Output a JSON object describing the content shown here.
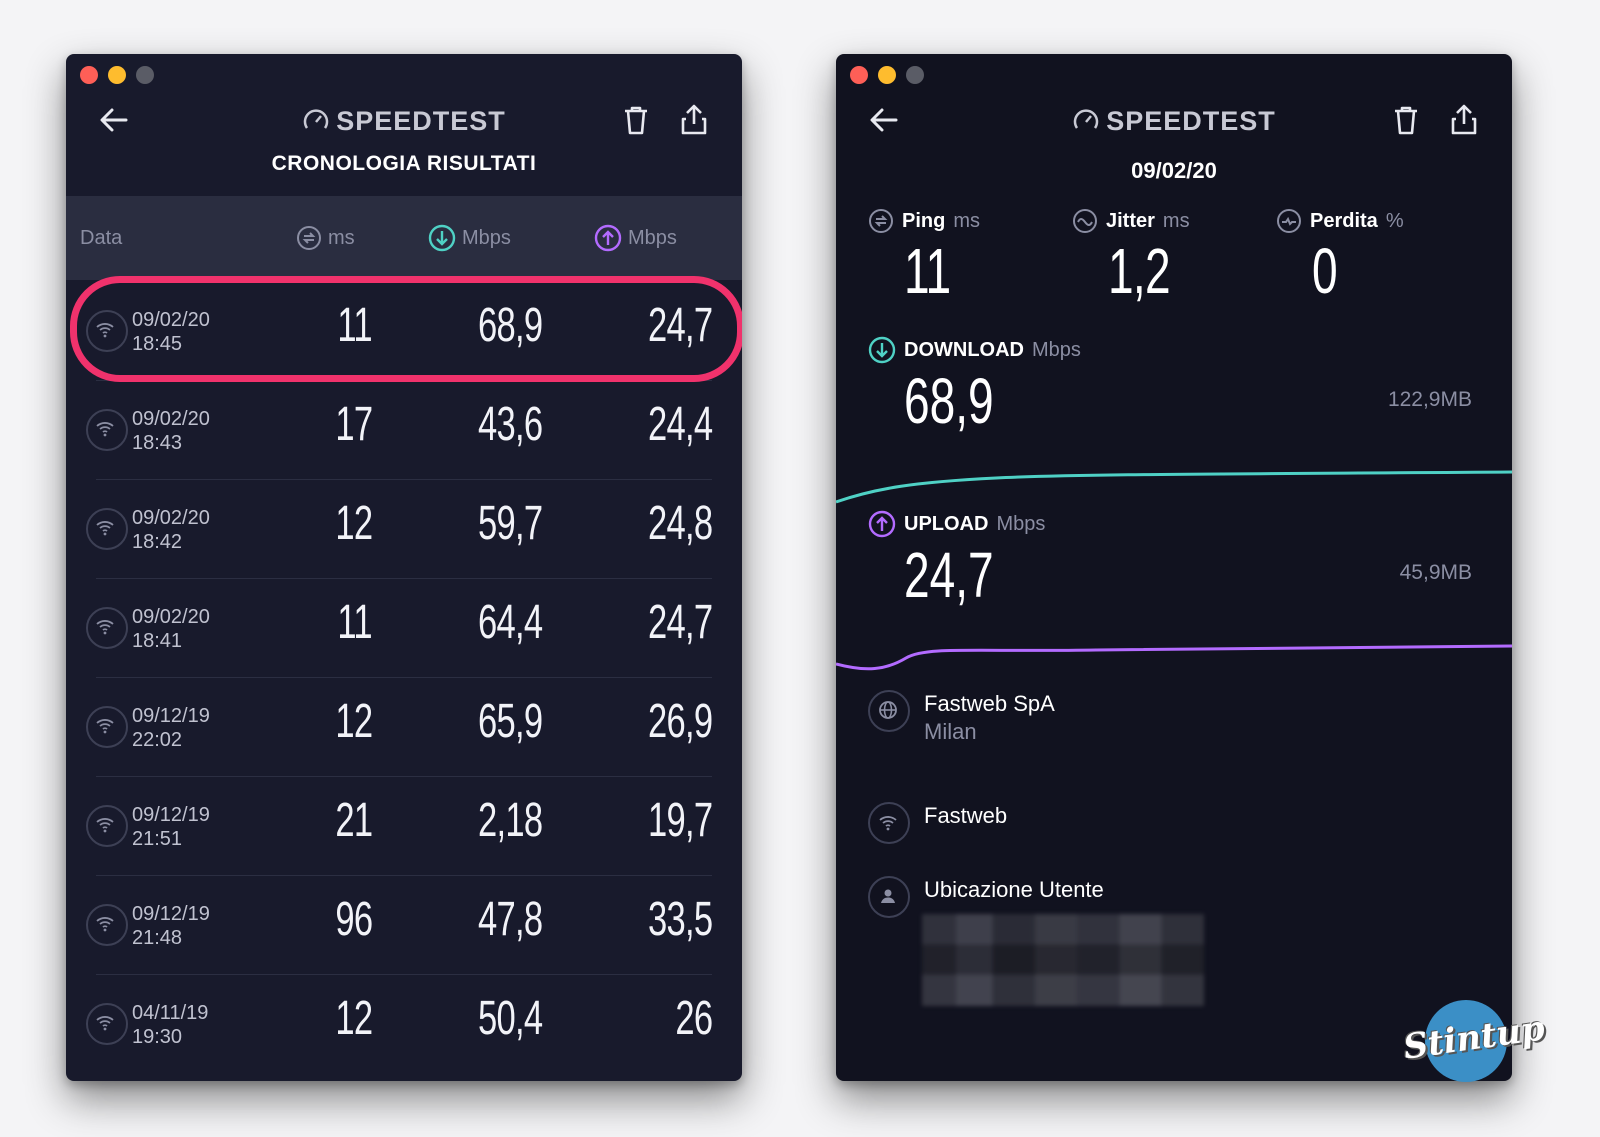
{
  "left": {
    "brand": "SPEEDTEST",
    "subtitle": "CRONOLOGIA RISULTATI",
    "columns": {
      "date": "Data",
      "ping_unit": "ms",
      "download_unit": "Mbps",
      "upload_unit": "Mbps"
    },
    "rows": [
      {
        "date": "09/02/20",
        "time": "18:45",
        "ping": "11",
        "download": "68,9",
        "upload": "24,7"
      },
      {
        "date": "09/02/20",
        "time": "18:43",
        "ping": "17",
        "download": "43,6",
        "upload": "24,4"
      },
      {
        "date": "09/02/20",
        "time": "18:42",
        "ping": "12",
        "download": "59,7",
        "upload": "24,8"
      },
      {
        "date": "09/02/20",
        "time": "18:41",
        "ping": "11",
        "download": "64,4",
        "upload": "24,7"
      },
      {
        "date": "09/12/19",
        "time": "22:02",
        "ping": "12",
        "download": "65,9",
        "upload": "26,9"
      },
      {
        "date": "09/12/19",
        "time": "21:51",
        "ping": "21",
        "download": "2,18",
        "upload": "19,7"
      },
      {
        "date": "09/12/19",
        "time": "21:48",
        "ping": "96",
        "download": "47,8",
        "upload": "33,5"
      },
      {
        "date": "04/11/19",
        "time": "19:30",
        "ping": "12",
        "download": "50,4",
        "upload": "26"
      }
    ]
  },
  "right": {
    "brand": "SPEEDTEST",
    "date": "09/02/20",
    "ping": {
      "label": "Ping",
      "unit": "ms",
      "value": "11"
    },
    "jitter": {
      "label": "Jitter",
      "unit": "ms",
      "value": "1,2"
    },
    "loss": {
      "label": "Perdita",
      "unit": "%",
      "value": "0"
    },
    "download": {
      "label": "DOWNLOAD",
      "unit": "Mbps",
      "value": "68,9",
      "size": "122,9MB"
    },
    "upload": {
      "label": "UPLOAD",
      "unit": "Mbps",
      "value": "24,7",
      "size": "45,9MB"
    },
    "provider": {
      "name": "Fastweb SpA",
      "city": "Milan"
    },
    "network": "Fastweb",
    "location_label": "Ubicazione Utente"
  },
  "watermark": "Stintup",
  "colors": {
    "download": "#4fd1c5",
    "upload": "#b36bff",
    "highlight": "#f0326c"
  }
}
